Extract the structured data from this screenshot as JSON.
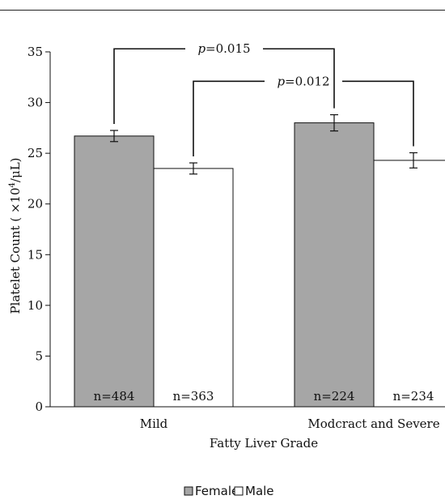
{
  "chart_data": {
    "type": "bar",
    "categories": [
      "Mild",
      "Modcract and Severe"
    ],
    "series": [
      {
        "name": "Female",
        "color": "#a6a6a6",
        "values": [
          26.7,
          28.0
        ],
        "errors": [
          0.55,
          0.8
        ],
        "n_labels": [
          "n=484",
          "n=224"
        ]
      },
      {
        "name": "Male",
        "color": "#ffffff",
        "values": [
          23.5,
          24.3
        ],
        "errors": [
          0.55,
          0.75
        ],
        "n_labels": [
          "n=363",
          "n=234"
        ]
      }
    ],
    "xlabel": "Fatty Liver Grade",
    "ylabel_parts": {
      "prefix": "Platelet Count ( ×10",
      "exp": "4",
      "suffix": "/μL)"
    },
    "ylim": [
      0,
      35
    ],
    "yticks": [
      0,
      5,
      10,
      15,
      20,
      25,
      30,
      35
    ],
    "ytick_labels": [
      "0",
      "5",
      "10",
      "15",
      "20",
      "25",
      "30",
      "35"
    ],
    "grid": false,
    "legend_position": "bottom-center",
    "annotations": [
      {
        "from_series": 0,
        "from_category": 0,
        "to_series": 0,
        "to_category": 1,
        "p_italic": "p",
        "p_value": "=0.015",
        "level": 35.3
      },
      {
        "from_series": 1,
        "from_category": 0,
        "to_series": 1,
        "to_category": 1,
        "p_italic": "p",
        "p_value": "=0.012",
        "level": 32.1
      }
    ]
  }
}
